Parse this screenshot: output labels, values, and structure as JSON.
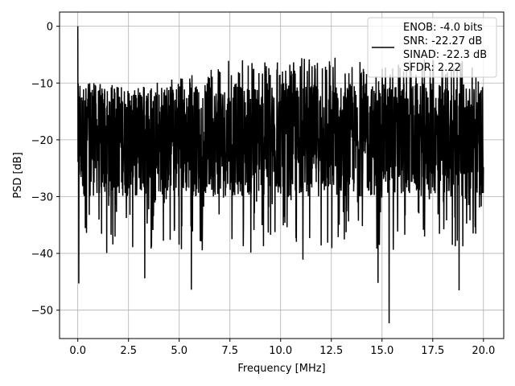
{
  "chart_data": {
    "type": "line",
    "title": "",
    "xlabel": "Frequency [MHz]",
    "ylabel": "PSD [dB]",
    "xlim": [
      -0.9,
      21.0
    ],
    "ylim": [
      -55,
      2.5
    ],
    "xticks": [
      0.0,
      2.5,
      5.0,
      7.5,
      10.0,
      12.5,
      15.0,
      17.5,
      20.0
    ],
    "xtick_labels": [
      "0.0",
      "2.5",
      "5.0",
      "7.5",
      "10.0",
      "12.5",
      "15.0",
      "17.5",
      "20.0"
    ],
    "yticks": [
      0,
      -10,
      -20,
      -30,
      -40,
      -50
    ],
    "ytick_labels": [
      "0",
      "−10",
      "−20",
      "−30",
      "−40",
      "−50"
    ],
    "grid": true,
    "legend_position": "top-right",
    "legend": [
      "ENOB: -4.0 bits",
      "SNR: -22.27 dB",
      "SINAD: -22.3 dB",
      "SFDR: 2.22"
    ],
    "series": [
      {
        "color": "#000000",
        "x_range": [
          0.0,
          20.0
        ],
        "peak": {
          "x": 0.0,
          "y": 0
        },
        "noise_floor_median": -20,
        "noise_floor_upper_envelope": [
          [
            0.0,
            -9
          ],
          [
            2.5,
            -11
          ],
          [
            5.0,
            -9
          ],
          [
            7.5,
            -6
          ],
          [
            10.0,
            -6
          ],
          [
            12.5,
            -5
          ],
          [
            15.0,
            -7
          ],
          [
            17.5,
            -5
          ],
          [
            20.0,
            -7
          ]
        ],
        "notable_dips": [
          {
            "x": 0.05,
            "y": -45.3
          },
          {
            "x": 5.6,
            "y": -46.4
          },
          {
            "x": 15.35,
            "y": -52.3
          },
          {
            "x": 14.8,
            "y": -45.2
          },
          {
            "x": 18.8,
            "y": -46.5
          },
          {
            "x": 11.1,
            "y": -41.1
          },
          {
            "x": 3.3,
            "y": -44.4
          }
        ]
      }
    ]
  }
}
